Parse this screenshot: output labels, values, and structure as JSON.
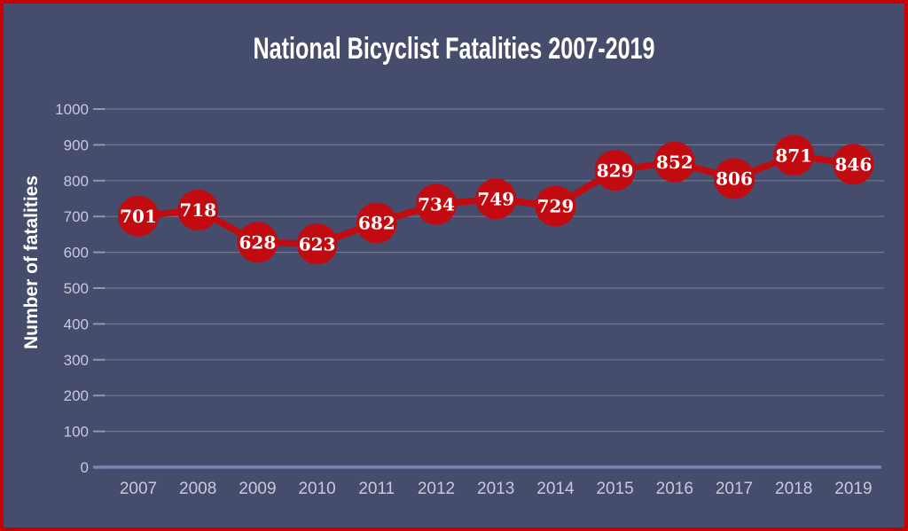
{
  "chart_data": {
    "type": "line",
    "title": "National Bicyclist Fatalities 2007-2019",
    "ylabel": "Number of fatalities",
    "xlabel": "",
    "categories": [
      "2007",
      "2008",
      "2009",
      "2010",
      "2011",
      "2012",
      "2013",
      "2014",
      "2015",
      "2016",
      "2017",
      "2018",
      "2019"
    ],
    "values": [
      701,
      718,
      628,
      623,
      682,
      734,
      749,
      729,
      829,
      852,
      806,
      871,
      846
    ],
    "ylim": [
      0,
      1000
    ],
    "ytick_step": 100,
    "grid": "horizontal",
    "legend": "none",
    "data_labels": "inside-markers",
    "colors": {
      "background": "#464c6b",
      "frame_border": "#c90000",
      "line": "#c20b10",
      "marker": "#c20b10",
      "gridline": "rgba(206,212,233,0.32)",
      "tick_mark": "rgba(206,212,233,0.55)",
      "axis_line": "#7a83b4",
      "tick_text": "#c7cadc",
      "title_text": "#ffffff",
      "data_label_text": "#ffffff"
    }
  }
}
